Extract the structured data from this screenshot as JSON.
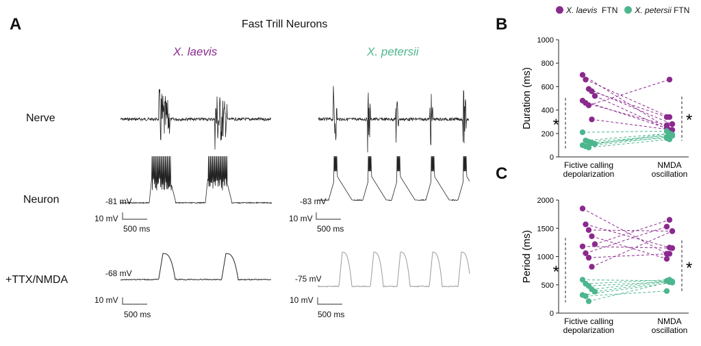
{
  "colors": {
    "laevis": "#8B2A8E",
    "petersii": "#4DB68E",
    "trace": "#222222",
    "trace_grey": "#9a9a9a"
  },
  "panelA": {
    "letter": "A",
    "title": "Fast Trill Neurons",
    "species_left": "X. laevis",
    "species_right": "X. petersii",
    "rows": {
      "nerve": "Nerve",
      "neuron": "Neuron",
      "ttx": "+TTX/NMDA"
    },
    "laevis_neuron_vm": "-81 mV",
    "petersii_neuron_vm": "-83 mV",
    "laevis_ttx_vm": "-68 mV",
    "petersii_ttx_vm": "-75 mV",
    "scale_mv": "10 mV",
    "scale_ms": "500 ms"
  },
  "legend": {
    "laevis_species": "X. laevis",
    "laevis_suffix": "FTN",
    "petersii_species": "X. petersii",
    "petersii_suffix": "FTN"
  },
  "chart_data": [
    {
      "panel": "B",
      "type": "scatter",
      "xlabel": "",
      "ylabel": "Duration (ms)",
      "categories": [
        "Fictive calling\ndepolarization",
        "NMDA\noscillation"
      ],
      "category_lines": [
        [
          "Fictive calling",
          "depolarization"
        ],
        [
          "NMDA",
          "oscillation"
        ]
      ],
      "ylim": [
        0,
        1000
      ],
      "yticks": [
        0,
        200,
        400,
        600,
        800,
        1000
      ],
      "significance": [
        "*",
        "*"
      ],
      "series": [
        {
          "name": "X. laevis",
          "color": "#8B2A8E",
          "pairs": [
            [
              700,
              250
            ],
            [
              660,
              340
            ],
            [
              580,
              280
            ],
            [
              560,
              340
            ],
            [
              520,
              230
            ],
            [
              480,
              230
            ],
            [
              460,
              270
            ],
            [
              440,
              660
            ],
            [
              320,
              230
            ]
          ]
        },
        {
          "name": "X. petersii",
          "color": "#4DB68E",
          "pairs": [
            [
              210,
              220
            ],
            [
              140,
              200
            ],
            [
              130,
              180
            ],
            [
              120,
              160
            ],
            [
              110,
              200
            ],
            [
              100,
              190
            ],
            [
              90,
              170
            ],
            [
              80,
              150
            ]
          ]
        }
      ]
    },
    {
      "panel": "C",
      "type": "scatter",
      "xlabel": "",
      "ylabel": "Period (ms)",
      "categories": [
        "Fictive calling\ndepolarization",
        "NMDA\noscillation"
      ],
      "category_lines": [
        [
          "Fictive calling",
          "depolarization"
        ],
        [
          "NMDA",
          "oscillation"
        ]
      ],
      "ylim": [
        0,
        2000
      ],
      "yticks": [
        0,
        500,
        1000,
        1500,
        2000
      ],
      "significance": [
        "*",
        "*"
      ],
      "series": [
        {
          "name": "X. laevis",
          "color": "#8B2A8E",
          "pairs": [
            [
              1850,
              1050
            ],
            [
              1570,
              1160
            ],
            [
              1470,
              1450
            ],
            [
              1360,
              960
            ],
            [
              1220,
              1650
            ],
            [
              1180,
              1150
            ],
            [
              1060,
              1530
            ],
            [
              980,
              1050
            ],
            [
              820,
              1450
            ]
          ]
        },
        {
          "name": "X. petersii",
          "color": "#4DB68E",
          "pairs": [
            [
              590,
              570
            ],
            [
              520,
              590
            ],
            [
              480,
              560
            ],
            [
              420,
              570
            ],
            [
              380,
              560
            ],
            [
              320,
              540
            ],
            [
              300,
              390
            ],
            [
              210,
              550
            ]
          ]
        }
      ]
    }
  ]
}
